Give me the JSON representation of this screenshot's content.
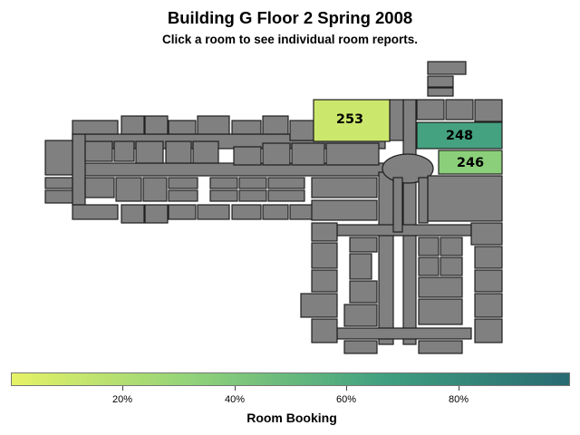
{
  "header": {
    "title": "Building G Floor 2 Spring 2008",
    "subtitle": "Click a room to see individual room reports."
  },
  "map": {
    "default_room_color": "#808080",
    "outline_color": "#1e1e1e",
    "booked_rooms": [
      {
        "id": "253",
        "label": "253",
        "booking_percent": 10
      },
      {
        "id": "248",
        "label": "248",
        "booking_percent": 65
      },
      {
        "id": "246",
        "label": "246",
        "booking_percent": 35
      }
    ]
  },
  "legend": {
    "title": "Room Booking",
    "tick_labels": [
      "20%",
      "40%",
      "60%",
      "80%"
    ],
    "tick_values": [
      20,
      40,
      60,
      80
    ],
    "range": [
      0,
      100
    ],
    "color_stops": [
      "#e6f266",
      "#8fd17a",
      "#40a080",
      "#286a72"
    ]
  }
}
